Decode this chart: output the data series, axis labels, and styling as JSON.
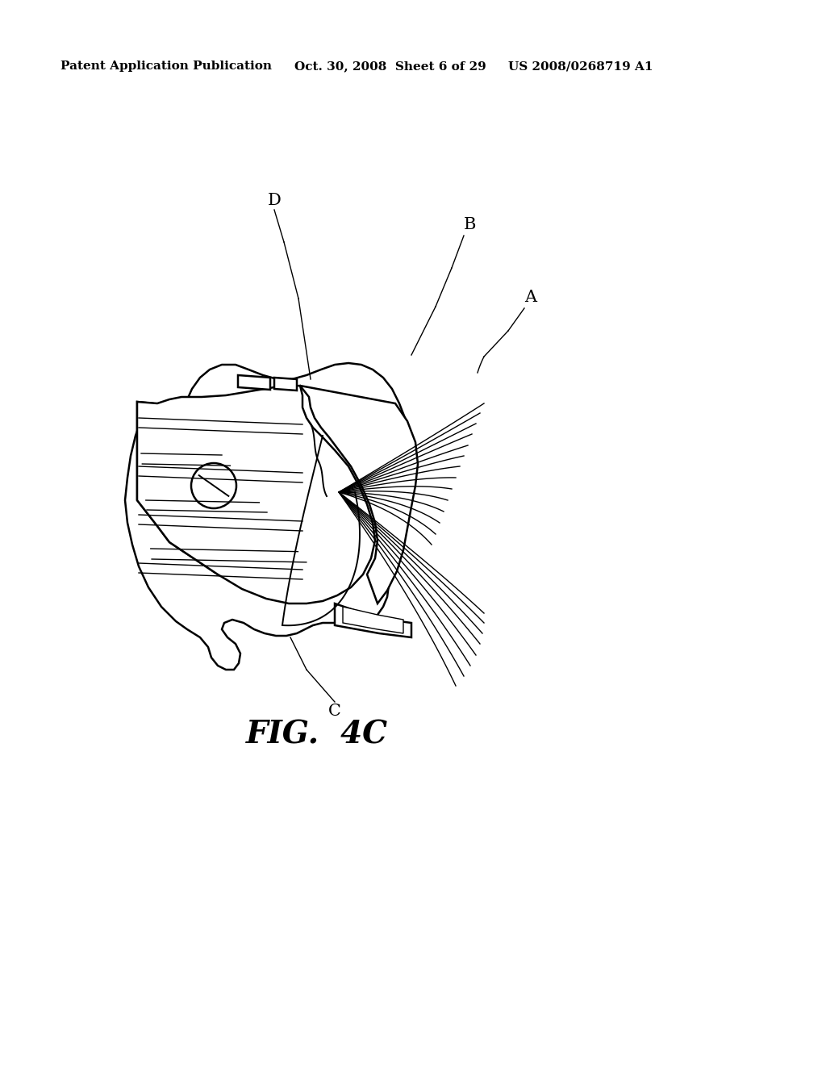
{
  "bg_color": "#ffffff",
  "header_left": "Patent Application Publication",
  "header_mid": "Oct. 30, 2008  Sheet 6 of 29",
  "header_right": "US 2008/0268719 A1",
  "fig_label": "FIG.  4C",
  "label_A": "A",
  "label_B": "B",
  "label_C": "C",
  "label_D": "D",
  "header_fontsize": 11,
  "label_fontsize": 15,
  "fig_label_fontsize": 28,
  "lw_main": 1.8,
  "lw_thin": 1.0,
  "lw_med": 1.4
}
